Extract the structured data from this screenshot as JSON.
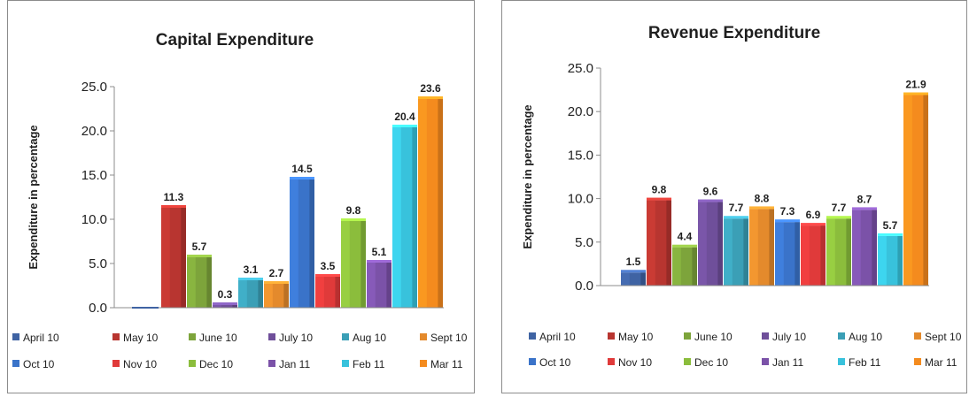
{
  "legend": {
    "colors": [
      "#3f63a3",
      "#b83530",
      "#7da43b",
      "#6f4f9a",
      "#3b9fb6",
      "#e48a2c",
      "#3a73c9",
      "#e03a3a",
      "#8bbd3c",
      "#7b52a8",
      "#38c2dc",
      "#f48b1e"
    ]
  },
  "chart_data": [
    {
      "type": "bar",
      "title": "Capital Expenditure",
      "xlabel": "",
      "ylabel": "Expenditure in percentage",
      "ylim": [
        0,
        25
      ],
      "yticks": [
        "0.0",
        "5.0",
        "10.0",
        "15.0",
        "20.0",
        "25.0"
      ],
      "categories": [
        "April 10",
        "May 10",
        "June 10",
        "July 10",
        "Aug 10",
        "Sept 10",
        "Oct 10",
        "Nov 10",
        "Dec 10",
        "Jan 11",
        "Feb 11",
        "Mar 11"
      ],
      "values": [
        0.0,
        11.3,
        5.7,
        0.3,
        3.1,
        2.7,
        14.5,
        3.5,
        9.8,
        5.1,
        20.4,
        23.6
      ],
      "labels": [
        "",
        "11.3",
        "5.7",
        "0.3",
        "3.1",
        "2.7",
        "14.5",
        "3.5",
        "9.8",
        "5.1",
        "20.4",
        "23.6"
      ],
      "legend_position": "bottom"
    },
    {
      "type": "bar",
      "title": "Revenue Expenditure",
      "xlabel": "",
      "ylabel": "Expenditure in percentage",
      "ylim": [
        0,
        25
      ],
      "yticks": [
        "0.0",
        "5.0",
        "10.0",
        "15.0",
        "20.0",
        "25.0"
      ],
      "categories": [
        "April 10",
        "May 10",
        "June 10",
        "July 10",
        "Aug 10",
        "Sept 10",
        "Oct 10",
        "Nov 10",
        "Dec 10",
        "Jan 11",
        "Feb 11",
        "Mar 11"
      ],
      "values": [
        1.5,
        9.8,
        4.4,
        9.6,
        7.7,
        8.8,
        7.3,
        6.9,
        7.7,
        8.7,
        5.7,
        21.9
      ],
      "labels": [
        "1.5",
        "9.8",
        "4.4",
        "9.6",
        "7.7",
        "8.8",
        "7.3",
        "6.9",
        "7.7",
        "8.7",
        "5.7",
        "21.9"
      ],
      "legend_position": "bottom"
    }
  ]
}
